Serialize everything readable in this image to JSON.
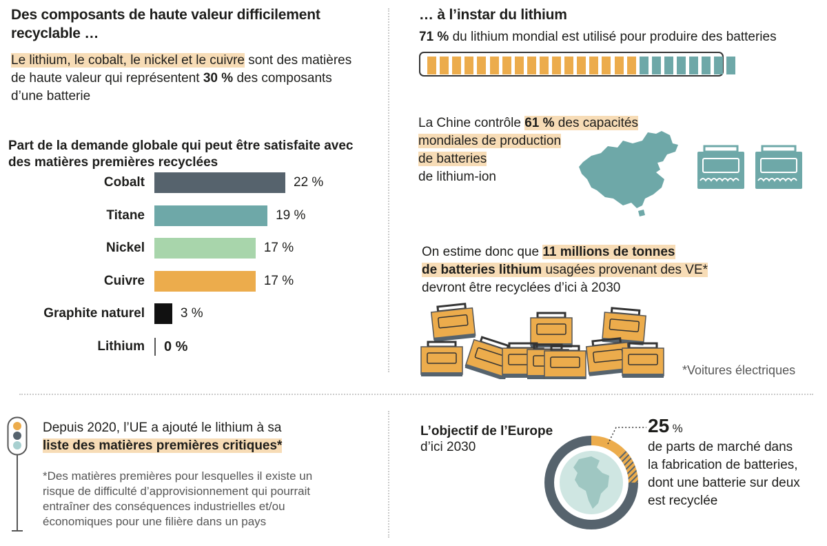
{
  "left_top": {
    "title_line1": "Des composants de haute valeur difficilement",
    "title_line2": "recyclable …",
    "intro_highlight": "Le lithium, le cobalt, le nickel et le cuivre",
    "intro_rest1": " sont des matières",
    "intro_line2a": "de haute valeur qui représentent ",
    "intro_bold": "30 %",
    "intro_line2b": " des composants",
    "intro_line3": "d’une batterie"
  },
  "chart_data": {
    "type": "bar",
    "title": "Part de la demande globale qui peut être satisfaite avec des matières premières recyclées",
    "title_line1": "Part de la demande globale qui peut être satisfaite avec",
    "title_line2": "des matières premières recyclées",
    "orientation": "horizontal",
    "categories": [
      "Cobalt",
      "Titane",
      "Nickel",
      "Cuivre",
      "Graphite naturel",
      "Lithium"
    ],
    "values": [
      22,
      19,
      17,
      17,
      3,
      0
    ],
    "value_labels": [
      "22 %",
      "19 %",
      "17 %",
      "17 %",
      "3 %",
      "0 %"
    ],
    "colors": [
      "#56636d",
      "#6ea8a8",
      "#a8d5ab",
      "#ecac4c",
      "#111111",
      "#111111"
    ],
    "unit": "%"
  },
  "right_top": {
    "title": "… à l’instar du lithium",
    "stat_bold": "71 %",
    "stat_text": " du lithium mondial est utilisé pour produire des batteries",
    "progress_value": 71,
    "progress_segments": 25,
    "color_used": "#ecac4c",
    "color_rest": "#6ea8a8"
  },
  "china": {
    "line1a": "La Chine contrôle ",
    "line1b": "61 %",
    "line1c": " des capacités",
    "line2": "mondiales de production",
    "line3": "de batteries",
    "line4": "de lithium-ion",
    "map_icon": "china-map-icon",
    "battery_icon": "battery-icon",
    "color": "#6ea8a8"
  },
  "recycling": {
    "line1a": "On estime donc que ",
    "line1b": "11 millions de tonnes",
    "line2a": "de batteries lithium",
    "line2b": " usagées provenant des VE*",
    "line3": "devront être recyclées d’ici à 2030",
    "footnote": "*Voitures électriques",
    "battery_icon": "battery-pile-icon",
    "color": "#ecac4c"
  },
  "eu_critical": {
    "line1": "Depuis 2020, l’UE a ajouté le lithium à sa",
    "line2": "liste des matières premières critiques*",
    "footnote_line1": "*Des matières premières pour lesquelles il existe un",
    "footnote_line2": "risque de difficulté d’approvisionnement qui pourrait",
    "footnote_line3": "entraîner des conséquences industrielles et/ou",
    "footnote_line4": "économiques pour une filière dans un pays",
    "icon": "traffic-light-icon"
  },
  "europe_goal": {
    "title": "L’objectif de l’Europe",
    "subtitle": "d’ici 2030",
    "value": 25,
    "value_text": "25",
    "unit": "%",
    "desc_line1": "de parts de marché dans",
    "desc_line2": "la fabrication de batteries,",
    "desc_line3": "dont une batterie sur deux",
    "desc_line4": "est recyclée",
    "icon": "globe-icon",
    "color_share": "#ecac4c",
    "color_rest": "#56636d"
  }
}
